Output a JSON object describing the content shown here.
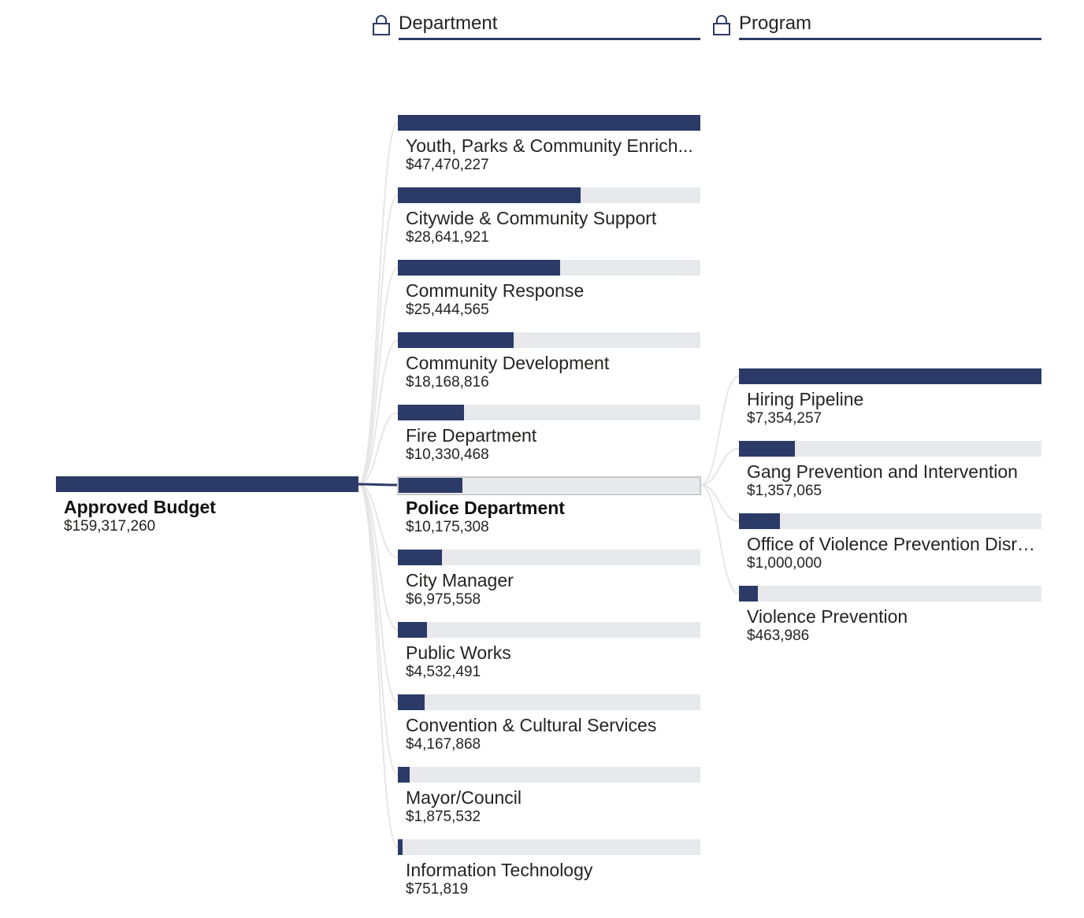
{
  "headers": [
    {
      "title": "Department",
      "icon": "lock-icon"
    },
    {
      "title": "Program",
      "icon": "lock-icon"
    }
  ],
  "root": {
    "label": "Approved Budget",
    "value": "$159,317,260",
    "amount": 159317260
  },
  "departments": [
    {
      "label": "Youth, Parks & Community Enrich...",
      "value": "$47,470,227",
      "amount": 47470227
    },
    {
      "label": "Citywide & Community Support",
      "value": "$28,641,921",
      "amount": 28641921
    },
    {
      "label": "Community Response",
      "value": "$25,444,565",
      "amount": 25444565
    },
    {
      "label": "Community Development",
      "value": "$18,168,816",
      "amount": 18168816
    },
    {
      "label": "Fire Department",
      "value": "$10,330,468",
      "amount": 10330468
    },
    {
      "label": "Police Department",
      "value": "$10,175,308",
      "amount": 10175308,
      "selected": true
    },
    {
      "label": "City Manager",
      "value": "$6,975,558",
      "amount": 6975558
    },
    {
      "label": "Public Works",
      "value": "$4,532,491",
      "amount": 4532491
    },
    {
      "label": "Convention & Cultural Services",
      "value": "$4,167,868",
      "amount": 4167868
    },
    {
      "label": "Mayor/Council",
      "value": "$1,875,532",
      "amount": 1875532
    },
    {
      "label": "Information Technology",
      "value": "$751,819",
      "amount": 751819
    }
  ],
  "programs": [
    {
      "label": "Hiring Pipeline",
      "value": "$7,354,257",
      "amount": 7354257
    },
    {
      "label": "Gang Prevention and Intervention",
      "value": "$1,357,065",
      "amount": 1357065
    },
    {
      "label": "Office of Violence Prevention Disru...",
      "value": "$1,000,000",
      "amount": 1000000
    },
    {
      "label": "Violence Prevention",
      "value": "$463,986",
      "amount": 463986
    }
  ],
  "colors": {
    "bar": "#2b3a67",
    "track": "#e8e9ec",
    "link": "#e6e6e6",
    "active_link": "#2b3a67"
  },
  "chart_data": {
    "type": "bar",
    "title": "",
    "series": [
      {
        "categories": [
          "Approved Budget"
        ],
        "values": [
          159317260
        ]
      },
      {
        "name": "Department",
        "categories": [
          "Youth, Parks & Community Enrich...",
          "Citywide & Community Support",
          "Community Response",
          "Community Development",
          "Fire Department",
          "Police Department",
          "City Manager",
          "Public Works",
          "Convention & Cultural Services",
          "Mayor/Council",
          "Information Technology"
        ],
        "values": [
          47470227,
          28641921,
          25444565,
          18168816,
          10330468,
          10175308,
          6975558,
          4532491,
          4167868,
          1875532,
          751819
        ]
      },
      {
        "name": "Program",
        "categories": [
          "Hiring Pipeline",
          "Gang Prevention and Intervention",
          "Office of Violence Prevention Disru...",
          "Violence Prevention"
        ],
        "values": [
          7354257,
          1357065,
          1000000,
          463986
        ]
      }
    ]
  }
}
